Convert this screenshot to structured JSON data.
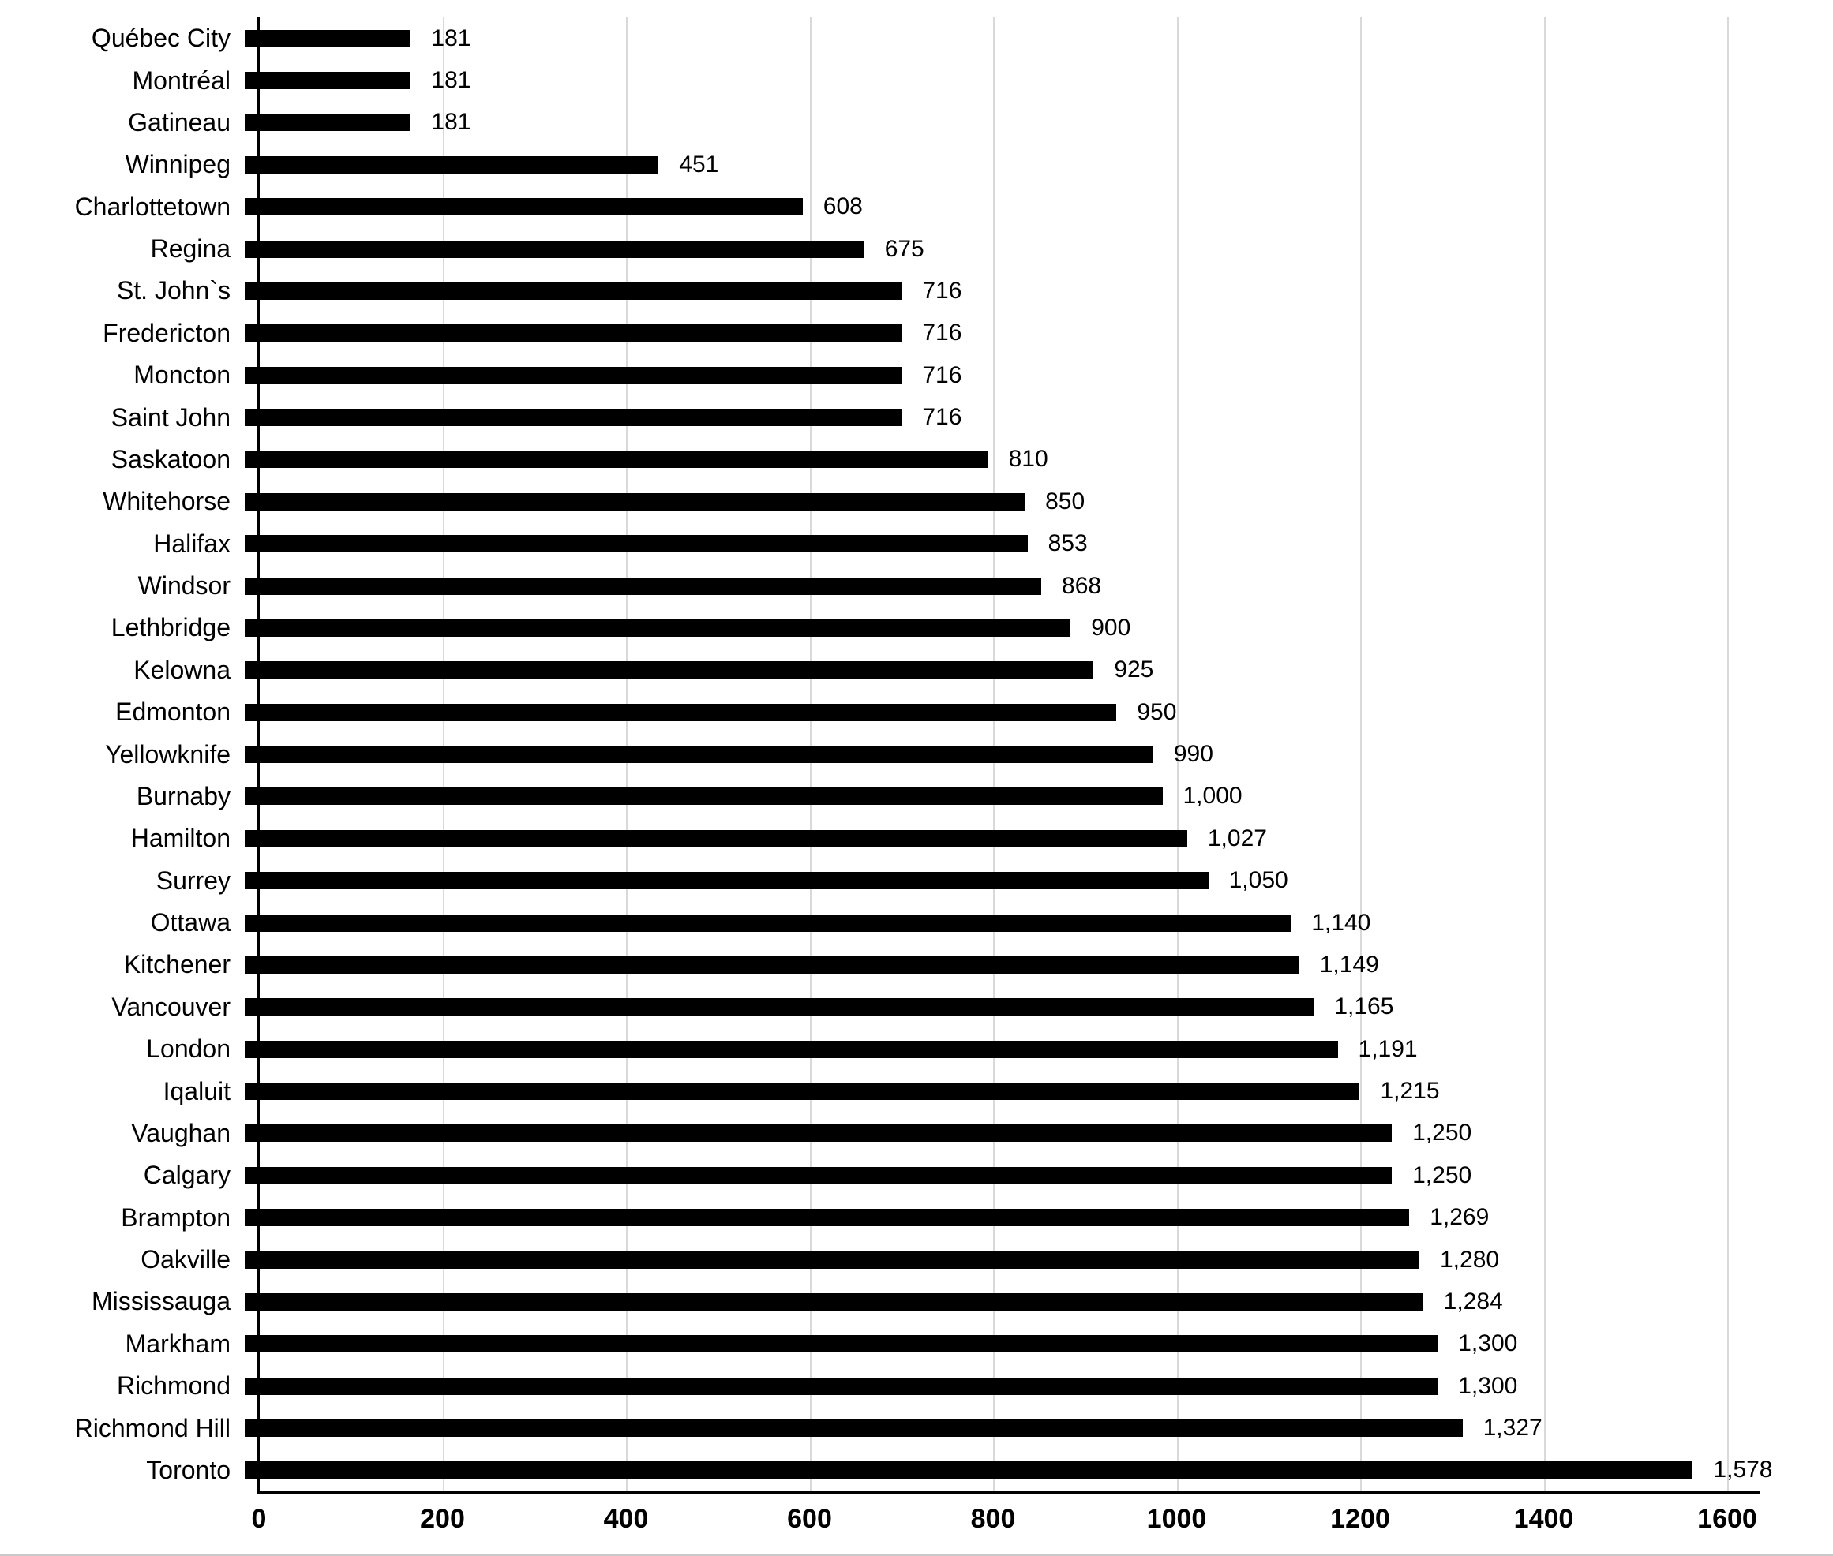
{
  "chart_data": {
    "type": "bar",
    "orientation": "horizontal",
    "title": "",
    "xlabel": "",
    "ylabel": "",
    "xlim": [
      0,
      1600
    ],
    "grid": "vertical-only",
    "legend": "none",
    "bar_color": "#000000",
    "gridline_color": "#d9d9d9",
    "axis_color": "#000000",
    "categories": [
      "Québec City",
      "Montréal",
      "Gatineau",
      "Winnipeg",
      "Charlottetown",
      "Regina",
      "St. John`s",
      "Fredericton",
      "Moncton",
      "Saint John",
      "Saskatoon",
      "Whitehorse",
      "Halifax",
      "Windsor",
      "Lethbridge",
      "Kelowna",
      "Edmonton",
      "Yellowknife",
      "Burnaby",
      "Hamilton",
      "Surrey",
      "Ottawa",
      "Kitchener",
      "Vancouver",
      "London",
      "Iqaluit",
      "Vaughan",
      "Calgary",
      "Brampton",
      "Oakville",
      "Mississauga",
      "Markham",
      "Richmond",
      "Richmond Hill",
      "Toronto"
    ],
    "values": [
      181,
      181,
      181,
      451,
      608,
      675,
      716,
      716,
      716,
      716,
      810,
      850,
      853,
      868,
      900,
      925,
      950,
      990,
      1000,
      1027,
      1050,
      1140,
      1149,
      1165,
      1191,
      1215,
      1250,
      1250,
      1269,
      1280,
      1284,
      1300,
      1300,
      1327,
      1578
    ],
    "value_labels": [
      "181",
      "181",
      "181",
      "451",
      "608",
      "675",
      "716",
      "716",
      "716",
      "716",
      "810",
      "850",
      "853",
      "868",
      "900",
      "925",
      "950",
      "990",
      "1,000",
      "1,027",
      "1,050",
      "1,140",
      "1,149",
      "1,165",
      "1,191",
      "1,215",
      "1,250",
      "1,250",
      "1,269",
      "1,280",
      "1,284",
      "1,300",
      "1,300",
      "1,327",
      "1,578"
    ],
    "x_ticks": [
      0,
      200,
      400,
      600,
      800,
      1000,
      1200,
      1400,
      1600
    ],
    "x_tick_labels": [
      "0",
      "200",
      "400",
      "600",
      "800",
      "1000",
      "1200",
      "1400",
      "1600"
    ]
  }
}
